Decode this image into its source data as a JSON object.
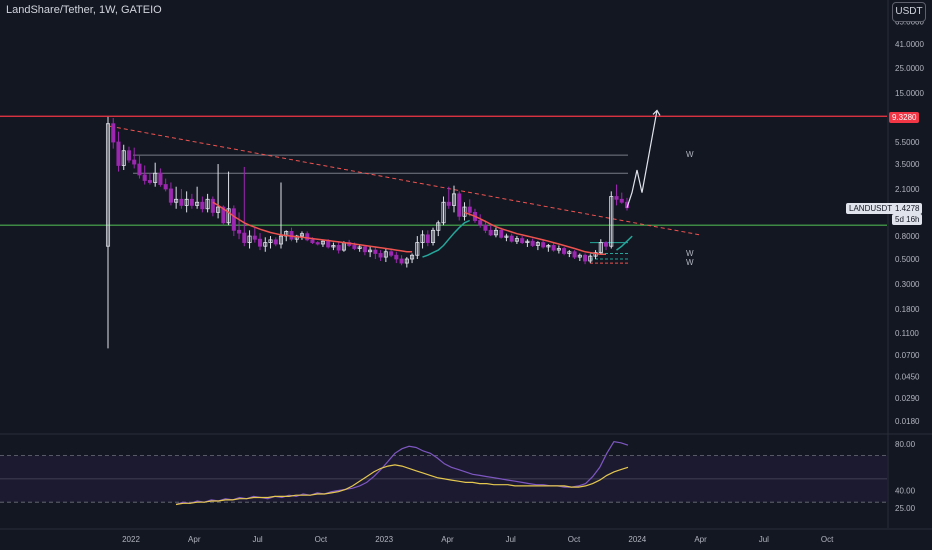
{
  "header": {
    "title": "LandShare/Tether, 1W, GATEIO",
    "currency": "USDT"
  },
  "price_tags": {
    "resistance": "9.3280",
    "symbol": "LANDUSDT",
    "price": "1.4278",
    "countdown": "5d 16h"
  },
  "chart_data": [
    {
      "type": "candlestick",
      "title": "",
      "scale": "log",
      "y_ticks": [
        "65.0000",
        "41.0000",
        "25.0000",
        "15.0000",
        "5.5000",
        "3.5000",
        "2.1000",
        "0.8000",
        "0.5000",
        "0.3000",
        "0.1800",
        "0.1100",
        "0.0700",
        "0.0450",
        "0.0290",
        "0.0180"
      ],
      "x_ticks": [
        "2022",
        "Apr",
        "Jul",
        "Oct",
        "2023",
        "Apr",
        "Jul",
        "Oct",
        "2024",
        "Apr",
        "Jul",
        "Oct"
      ],
      "horizontal_levels": [
        {
          "value": 9.328,
          "color": "#f23645",
          "label": "9.3280"
        },
        {
          "value": 1.0,
          "color": "#4caf50"
        },
        {
          "value": 4.2,
          "color": "#787b86"
        },
        {
          "value": 2.9,
          "color": "#787b86"
        }
      ],
      "annotations": [
        "W",
        "W",
        "W"
      ],
      "ohlc": [
        [
          0.65,
          9.2,
          0.08,
          8.0
        ],
        [
          8.0,
          9.0,
          4.8,
          5.5
        ],
        [
          5.5,
          6.8,
          3.0,
          3.4
        ],
        [
          3.4,
          5.2,
          3.1,
          4.6
        ],
        [
          4.6,
          5.0,
          3.6,
          3.8
        ],
        [
          3.8,
          4.9,
          3.2,
          3.5
        ],
        [
          3.5,
          4.2,
          2.6,
          2.8
        ],
        [
          2.8,
          3.4,
          2.3,
          2.5
        ],
        [
          2.5,
          2.9,
          2.3,
          2.4
        ],
        [
          2.4,
          3.6,
          2.2,
          2.9
        ],
        [
          2.9,
          3.2,
          2.2,
          2.3
        ],
        [
          2.3,
          2.6,
          2.0,
          2.1
        ],
        [
          2.1,
          2.4,
          1.5,
          1.6
        ],
        [
          1.6,
          2.2,
          1.4,
          1.7
        ],
        [
          1.7,
          2.1,
          1.4,
          1.5
        ],
        [
          1.5,
          2.0,
          1.3,
          1.7
        ],
        [
          1.7,
          1.9,
          1.4,
          1.5
        ],
        [
          1.5,
          2.2,
          1.4,
          1.6
        ],
        [
          1.6,
          1.8,
          1.3,
          1.4
        ],
        [
          1.4,
          1.9,
          1.3,
          1.7
        ],
        [
          1.7,
          1.8,
          1.2,
          1.3
        ],
        [
          1.3,
          3.5,
          1.15,
          1.45
        ],
        [
          1.45,
          1.5,
          1.0,
          1.05
        ],
        [
          1.05,
          3.0,
          1.0,
          1.4
        ],
        [
          1.4,
          1.5,
          0.8,
          0.9
        ],
        [
          0.9,
          1.3,
          0.75,
          0.85
        ],
        [
          0.85,
          3.3,
          0.65,
          0.7
        ],
        [
          0.7,
          0.9,
          0.62,
          0.8
        ],
        [
          0.8,
          0.95,
          0.7,
          0.75
        ],
        [
          0.75,
          0.85,
          0.6,
          0.65
        ],
        [
          0.65,
          0.78,
          0.58,
          0.7
        ],
        [
          0.7,
          0.8,
          0.62,
          0.74
        ],
        [
          0.74,
          0.78,
          0.65,
          0.68
        ],
        [
          0.68,
          2.4,
          0.62,
          0.8
        ],
        [
          0.8,
          0.9,
          0.72,
          0.88
        ],
        [
          0.88,
          0.95,
          0.72,
          0.75
        ],
        [
          0.75,
          0.82,
          0.7,
          0.8
        ],
        [
          0.8,
          0.88,
          0.74,
          0.84
        ],
        [
          0.84,
          0.88,
          0.72,
          0.74
        ],
        [
          0.74,
          0.78,
          0.68,
          0.7
        ],
        [
          0.7,
          0.72,
          0.66,
          0.68
        ],
        [
          0.68,
          0.74,
          0.64,
          0.72
        ],
        [
          0.72,
          0.75,
          0.62,
          0.64
        ],
        [
          0.64,
          0.7,
          0.6,
          0.66
        ],
        [
          0.66,
          0.72,
          0.56,
          0.6
        ],
        [
          0.6,
          0.72,
          0.58,
          0.7
        ],
        [
          0.7,
          0.74,
          0.64,
          0.66
        ],
        [
          0.66,
          0.7,
          0.6,
          0.62
        ],
        [
          0.62,
          0.68,
          0.58,
          0.64
        ],
        [
          0.64,
          0.66,
          0.54,
          0.58
        ],
        [
          0.58,
          0.64,
          0.52,
          0.6
        ],
        [
          0.6,
          0.64,
          0.5,
          0.56
        ],
        [
          0.56,
          0.6,
          0.48,
          0.52
        ],
        [
          0.52,
          0.62,
          0.47,
          0.58
        ],
        [
          0.58,
          0.62,
          0.52,
          0.54
        ],
        [
          0.54,
          0.58,
          0.46,
          0.5
        ],
        [
          0.5,
          0.54,
          0.44,
          0.46
        ],
        [
          0.46,
          0.52,
          0.42,
          0.5
        ],
        [
          0.5,
          0.56,
          0.46,
          0.54
        ],
        [
          0.54,
          0.8,
          0.5,
          0.7
        ],
        [
          0.7,
          0.9,
          0.62,
          0.82
        ],
        [
          0.82,
          0.9,
          0.65,
          0.7
        ],
        [
          0.7,
          0.95,
          0.66,
          0.9
        ],
        [
          0.9,
          1.1,
          0.8,
          1.05
        ],
        [
          1.05,
          1.8,
          1.0,
          1.6
        ],
        [
          1.6,
          2.2,
          1.4,
          1.5
        ],
        [
          1.5,
          2.25,
          1.3,
          1.9
        ],
        [
          1.9,
          2.0,
          1.1,
          1.2
        ],
        [
          1.2,
          1.6,
          1.1,
          1.45
        ],
        [
          1.45,
          1.7,
          1.2,
          1.3
        ],
        [
          1.3,
          1.4,
          1.05,
          1.1
        ],
        [
          1.1,
          1.25,
          0.95,
          1.0
        ],
        [
          1.0,
          1.1,
          0.85,
          0.9
        ],
        [
          0.9,
          1.0,
          0.8,
          0.82
        ],
        [
          0.82,
          0.95,
          0.78,
          0.9
        ],
        [
          0.9,
          0.95,
          0.76,
          0.78
        ],
        [
          0.78,
          0.84,
          0.72,
          0.8
        ],
        [
          0.8,
          0.84,
          0.7,
          0.72
        ],
        [
          0.72,
          0.8,
          0.68,
          0.76
        ],
        [
          0.76,
          0.8,
          0.68,
          0.7
        ],
        [
          0.7,
          0.75,
          0.64,
          0.72
        ],
        [
          0.72,
          0.76,
          0.64,
          0.66
        ],
        [
          0.66,
          0.72,
          0.6,
          0.7
        ],
        [
          0.7,
          0.74,
          0.62,
          0.64
        ],
        [
          0.64,
          0.68,
          0.58,
          0.66
        ],
        [
          0.66,
          0.7,
          0.58,
          0.6
        ],
        [
          0.6,
          0.66,
          0.56,
          0.62
        ],
        [
          0.62,
          0.64,
          0.54,
          0.56
        ],
        [
          0.56,
          0.6,
          0.52,
          0.58
        ],
        [
          0.58,
          0.6,
          0.5,
          0.52
        ],
        [
          0.52,
          0.56,
          0.48,
          0.54
        ],
        [
          0.54,
          0.56,
          0.45,
          0.48
        ],
        [
          0.48,
          0.55,
          0.46,
          0.53
        ],
        [
          0.53,
          0.6,
          0.5,
          0.57
        ],
        [
          0.57,
          0.75,
          0.55,
          0.7
        ],
        [
          0.7,
          0.72,
          0.6,
          0.65
        ],
        [
          0.65,
          2.0,
          0.62,
          1.8
        ],
        [
          1.8,
          2.3,
          1.5,
          1.7
        ],
        [
          1.7,
          1.95,
          1.55,
          1.6
        ],
        [
          1.6,
          1.75,
          1.35,
          1.43
        ]
      ],
      "moving_averages": [
        {
          "name": "",
          "color": "#ef5350",
          "values": [
            null,
            null,
            null,
            null,
            null,
            null,
            null,
            null,
            null,
            null,
            null,
            null,
            null,
            null,
            null,
            null,
            null,
            null,
            null,
            null,
            1.6,
            1.5,
            1.4,
            1.3,
            1.2,
            1.12,
            1.05,
            1.0,
            0.96,
            0.92,
            0.89,
            0.86,
            0.84,
            0.82,
            0.81,
            0.8,
            0.79,
            0.78,
            0.77,
            0.76,
            0.75,
            0.74,
            0.73,
            0.72,
            0.71,
            0.7,
            0.69,
            0.68,
            0.67,
            0.66,
            0.65,
            0.64,
            0.63,
            0.62,
            0.61,
            0.6,
            0.59,
            0.58,
            0.58,
            null,
            null,
            null,
            null,
            null,
            null,
            null,
            null,
            null,
            1.3,
            1.25,
            1.2,
            1.14,
            1.08,
            1.02,
            0.97,
            0.93,
            0.9,
            0.87,
            0.84,
            0.82,
            0.8,
            0.78,
            0.76,
            0.74,
            0.72,
            0.7,
            0.68,
            0.66,
            0.64,
            0.62,
            0.6,
            0.58,
            0.57,
            0.56,
            0.55,
            0.55,
            null,
            null,
            null,
            null
          ]
        },
        {
          "name": "",
          "color": "#26a69a",
          "values": [
            null,
            null,
            null,
            null,
            null,
            null,
            null,
            null,
            null,
            null,
            null,
            null,
            null,
            null,
            null,
            null,
            null,
            null,
            null,
            null,
            null,
            null,
            null,
            null,
            null,
            null,
            null,
            null,
            null,
            null,
            null,
            null,
            null,
            null,
            null,
            null,
            null,
            null,
            null,
            null,
            null,
            null,
            null,
            null,
            null,
            null,
            null,
            null,
            null,
            null,
            null,
            null,
            null,
            null,
            null,
            null,
            null,
            null,
            null,
            null,
            0.52,
            0.54,
            0.57,
            0.6,
            0.66,
            0.75,
            0.85,
            0.95,
            1.05,
            1.1,
            null,
            null,
            null,
            null,
            null,
            null,
            null,
            null,
            null,
            null,
            null,
            null,
            null,
            null,
            null,
            null,
            null,
            null,
            null,
            null,
            null,
            null,
            null,
            null,
            null,
            null,
            null,
            0.6,
            0.65,
            0.72,
            0.8
          ]
        }
      ],
      "projection": [
        1.43,
        1.95,
        3.1,
        1.95,
        10.5
      ]
    },
    {
      "type": "line",
      "title": "",
      "y_ticks": [
        "80.00",
        "40.00",
        "25.00"
      ],
      "levels": [
        70,
        50,
        30
      ],
      "series": [
        {
          "name": "",
          "color": "#7e57c2",
          "values": [
            28,
            30,
            29,
            31,
            30,
            32,
            31,
            33,
            32,
            34,
            33,
            35,
            34,
            33,
            35,
            34,
            36,
            35,
            37,
            36,
            38,
            37,
            39,
            40,
            41,
            42,
            44,
            47,
            52,
            58,
            65,
            72,
            76,
            78,
            77,
            74,
            72,
            68,
            63,
            60,
            58,
            56,
            54,
            53,
            52,
            51,
            50,
            49,
            48,
            47,
            46,
            45,
            45,
            44,
            44,
            43,
            43,
            44,
            46,
            52,
            60,
            72,
            82,
            81,
            79
          ]
        },
        {
          "name": "",
          "color": "#e5c74f",
          "values": [
            28,
            29,
            29,
            30,
            30,
            31,
            31,
            32,
            32,
            33,
            33,
            34,
            34,
            34,
            35,
            35,
            35,
            36,
            36,
            36,
            37,
            37,
            38,
            39,
            41,
            44,
            48,
            52,
            56,
            59,
            61,
            62,
            61,
            59,
            57,
            55,
            53,
            51,
            50,
            49,
            48,
            47,
            47,
            46,
            46,
            45,
            45,
            45,
            44,
            44,
            44,
            44,
            44,
            44,
            44,
            44,
            43,
            43,
            44,
            46,
            49,
            53,
            56,
            58,
            60
          ]
        }
      ]
    }
  ]
}
